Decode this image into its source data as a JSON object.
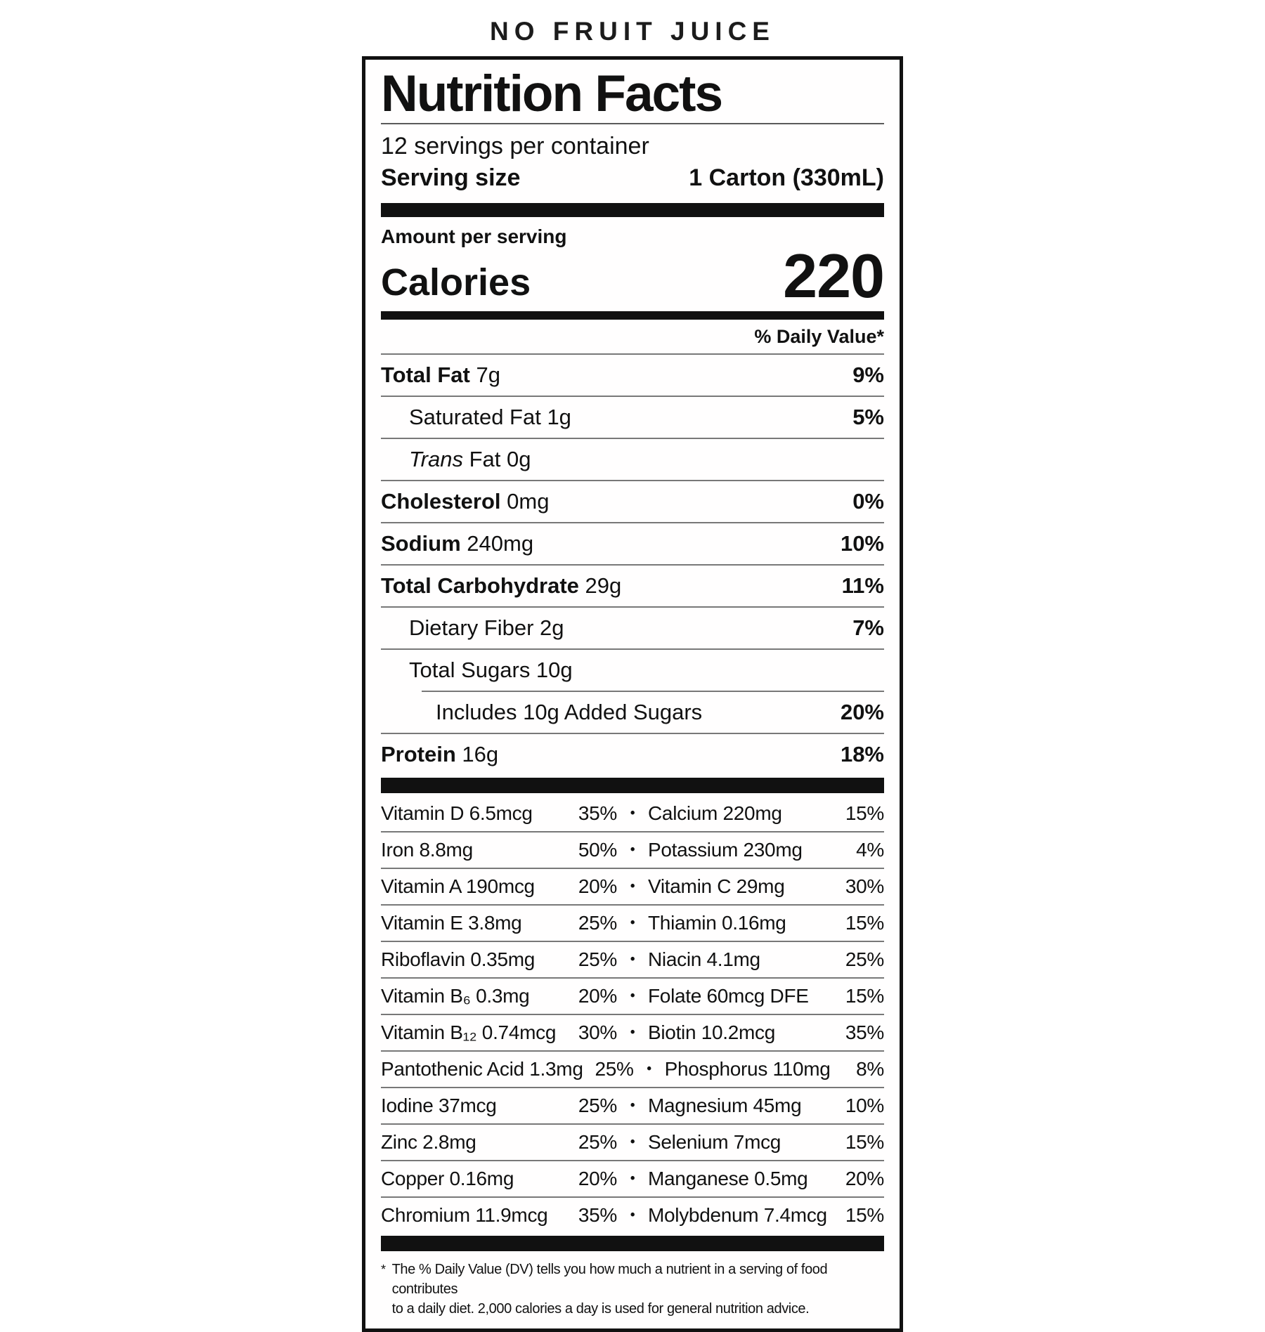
{
  "banner": {
    "text": "NO FRUIT JUICE"
  },
  "label": {
    "title": "Nutrition Facts",
    "servings_per_container": "12 servings per container",
    "serving_size_label": "Serving size",
    "serving_size_value": "1 Carton (330mL)",
    "amount_per_serving": "Amount per serving",
    "calories_label": "Calories",
    "calories_value": "220",
    "daily_value_header": "% Daily Value*"
  },
  "nutrients": [
    {
      "bold": "Total Fat",
      "rest": "7g",
      "dv": "9%",
      "indent": 0
    },
    {
      "rest": "Saturated Fat 1g",
      "dv": "5%",
      "indent": 1
    },
    {
      "italic": "Trans",
      "rest": "Fat 0g",
      "dv": "",
      "indent": 1
    },
    {
      "bold": "Cholesterol",
      "rest": "0mg",
      "dv": "0%",
      "indent": 0
    },
    {
      "bold": "Sodium",
      "rest": "240mg",
      "dv": "10%",
      "indent": 0
    },
    {
      "bold": "Total Carbohydrate",
      "rest": "29g",
      "dv": "11%",
      "indent": 0
    },
    {
      "rest": "Dietary Fiber 2g",
      "dv": "7%",
      "indent": 1
    },
    {
      "rest": "Total Sugars 10g",
      "dv": "",
      "indent": 1
    },
    {
      "rest": "Includes 10g Added Sugars",
      "dv": "20%",
      "indent": 2,
      "line_indent": true
    },
    {
      "bold": "Protein",
      "rest": "16g",
      "dv": "18%",
      "indent": 0
    }
  ],
  "micronutrients": [
    {
      "left": "Vitamin D 6.5mcg",
      "left_dv": "35%",
      "right": "Calcium 220mg",
      "right_dv": "15%"
    },
    {
      "left": "Iron 8.8mg",
      "left_dv": "50%",
      "right": "Potassium 230mg",
      "right_dv": "4%"
    },
    {
      "left": "Vitamin A 190mcg",
      "left_dv": "20%",
      "right": "Vitamin C 29mg",
      "right_dv": "30%"
    },
    {
      "left": "Vitamin E 3.8mg",
      "left_dv": "25%",
      "right": "Thiamin 0.16mg",
      "right_dv": "15%"
    },
    {
      "left": "Riboflavin 0.35mg",
      "left_dv": "25%",
      "right": "Niacin 4.1mg",
      "right_dv": "25%"
    },
    {
      "left": "Vitamin B₆ 0.3mg",
      "left_dv": "20%",
      "right": "Folate 60mcg DFE",
      "right_dv": "15%"
    },
    {
      "left": "Vitamin B₁₂ 0.74mcg",
      "left_dv": "30%",
      "right": "Biotin 10.2mcg",
      "right_dv": "35%"
    },
    {
      "left": "Pantothenic Acid 1.3mg",
      "left_dv": "25%",
      "right": "Phosphorus 110mg",
      "right_dv": "8%"
    },
    {
      "left": "Iodine 37mcg",
      "left_dv": "25%",
      "right": "Magnesium 45mg",
      "right_dv": "10%"
    },
    {
      "left": "Zinc 2.8mg",
      "left_dv": "25%",
      "right": "Selenium 7mcg",
      "right_dv": "15%"
    },
    {
      "left": "Copper 0.16mg",
      "left_dv": "20%",
      "right": "Manganese 0.5mg",
      "right_dv": "20%"
    },
    {
      "left": "Chromium 11.9mcg",
      "left_dv": "35%",
      "right": "Molybdenum 7.4mcg",
      "right_dv": "15%"
    }
  ],
  "footnote": {
    "marker": "*",
    "line1": "The % Daily Value (DV) tells you how much a nutrient in a serving of food contributes",
    "line2": "to a daily diet. 2,000 calories a day is used for general nutrition advice."
  },
  "colors": {
    "ink": "#111111",
    "hairline": "#787878",
    "background": "#ffffff"
  }
}
